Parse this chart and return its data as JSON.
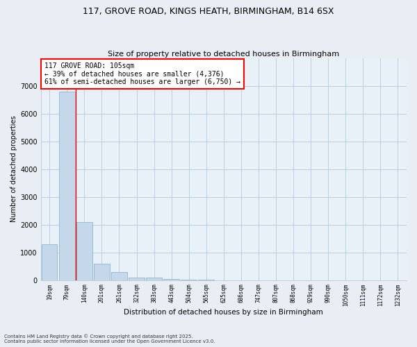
{
  "title1": "117, GROVE ROAD, KINGS HEATH, BIRMINGHAM, B14 6SX",
  "title2": "Size of property relative to detached houses in Birmingham",
  "xlabel": "Distribution of detached houses by size in Birmingham",
  "ylabel": "Number of detached properties",
  "categories": [
    "19sqm",
    "79sqm",
    "140sqm",
    "201sqm",
    "261sqm",
    "322sqm",
    "383sqm",
    "443sqm",
    "504sqm",
    "565sqm",
    "625sqm",
    "686sqm",
    "747sqm",
    "807sqm",
    "868sqm",
    "929sqm",
    "990sqm",
    "1050sqm",
    "1111sqm",
    "1172sqm",
    "1232sqm"
  ],
  "values": [
    1300,
    6800,
    2100,
    600,
    300,
    100,
    80,
    30,
    10,
    5,
    2,
    0,
    0,
    0,
    0,
    0,
    0,
    0,
    0,
    0,
    0
  ],
  "bar_color": "#c5d8ea",
  "bar_edge_color": "#7aaec8",
  "red_line_x": 1.5,
  "annotation_title": "117 GROVE ROAD: 105sqm",
  "annotation_line1": "← 39% of detached houses are smaller (4,376)",
  "annotation_line2": "61% of semi-detached houses are larger (6,750) →",
  "footer1": "Contains HM Land Registry data © Crown copyright and database right 2025.",
  "footer2": "Contains public sector information licensed under the Open Government Licence v3.0.",
  "ylim": [
    0,
    8000
  ],
  "yticks": [
    0,
    1000,
    2000,
    3000,
    4000,
    5000,
    6000,
    7000
  ],
  "bg_color": "#e8eef4",
  "plot_bg_color": "#e8f0f8",
  "grid_color": "#b8c8d8"
}
